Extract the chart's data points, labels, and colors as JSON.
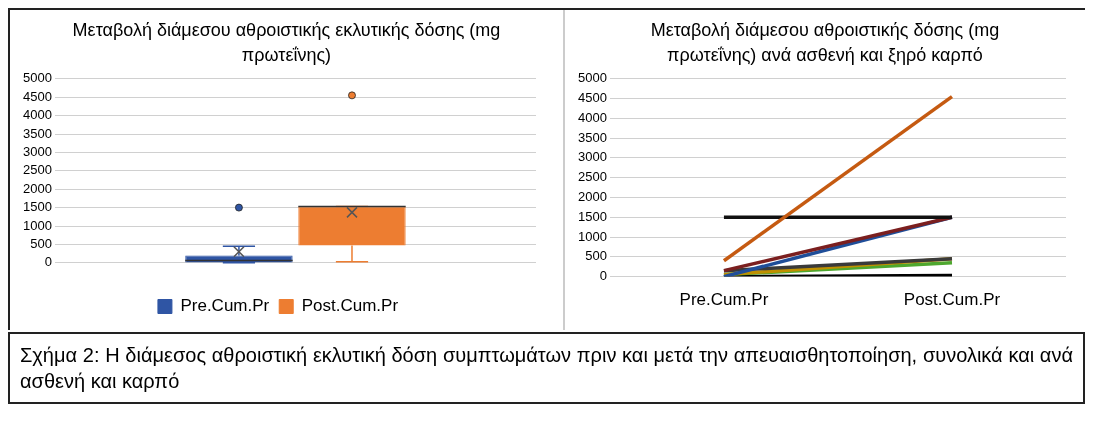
{
  "chart_data": [
    {
      "type": "box",
      "title": "Μεταβολή διάμεσου αθροιστικής εκλυτικής δόσης (mg πρωτεΐνης)",
      "categories": [
        null
      ],
      "series": [
        {
          "name": "Pre.Cum.Pr",
          "color": "#2f55a4",
          "boxes": [
            {
              "low": 0,
              "q1": 10,
              "median": 60,
              "q3": 200,
              "high": 450,
              "mean": 300,
              "outliers": [
                1500
              ]
            }
          ]
        },
        {
          "name": "Post.Cum.Pr",
          "color": "#ed7d31",
          "boxes": [
            {
              "low": 30,
              "q1": 470,
              "median": 1530,
              "q3": 1530,
              "high": 1530,
              "mean": 1370,
              "outliers": [
                4550
              ]
            }
          ]
        }
      ],
      "ylim": [
        0,
        5000
      ],
      "yticks": [
        0,
        500,
        1000,
        1500,
        2000,
        2500,
        3000,
        3500,
        4000,
        4500,
        5000
      ],
      "grid": "y",
      "legend": "bottom",
      "annotations": [
        "Σχήμα 2: Η διάμεσος αθροιστική εκλυτική δόση συμπτωμάτων πριν και μετά την απευαισθητοποίηση, συνολικά και ανά ασθενή και καρπό"
      ]
    },
    {
      "type": "line",
      "title": "Μεταβολή διάμεσου αθροιστικής δόσης (mg πρωτεΐνης) ανά ασθενή και ξηρό καρπό",
      "categories": [
        "Pre.Cum.Pr",
        "Post.Cum.Pr"
      ],
      "series": [
        {
          "color": "#c55a11",
          "values": [
            400,
            4550
          ]
        },
        {
          "color": "#111111",
          "values": [
            1500,
            1500
          ]
        },
        {
          "color": "#7b1f1f",
          "values": [
            150,
            1500
          ]
        },
        {
          "color": "#1f4e99",
          "values": [
            0,
            1500
          ]
        },
        {
          "color": "#3a3a3a",
          "values": [
            150,
            450
          ]
        },
        {
          "color": "#bf9000",
          "values": [
            50,
            450
          ]
        },
        {
          "color": "#4ea72e",
          "values": [
            50,
            350
          ]
        },
        {
          "color": "#000000",
          "values": [
            0,
            30
          ]
        }
      ],
      "ylim": [
        0,
        5000
      ],
      "yticks": [
        0,
        500,
        1000,
        1500,
        2000,
        2500,
        3000,
        3500,
        4000,
        4500,
        5000
      ],
      "grid": "y"
    }
  ]
}
